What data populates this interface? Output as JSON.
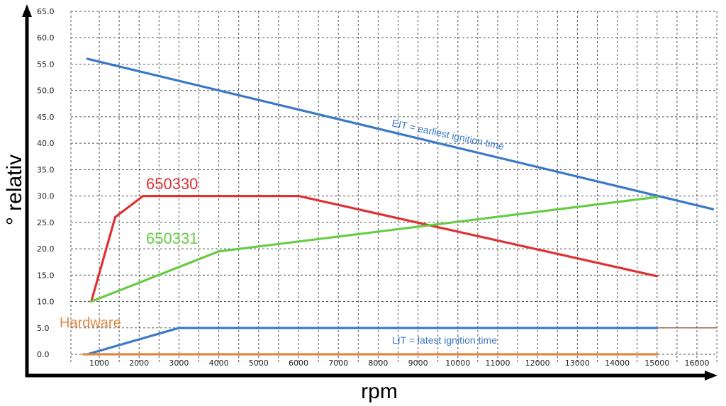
{
  "chart_data": {
    "type": "line",
    "xlabel": "rpm",
    "ylabel": "° relativ",
    "xlim": [
      600,
      16400
    ],
    "ylim": [
      0,
      65
    ],
    "x_ticks": [
      "1000",
      "2000",
      "3000",
      "4000",
      "5000",
      "6000",
      "7000",
      "8000",
      "9000",
      "10000",
      "11000",
      "12000",
      "13000",
      "14000",
      "15000",
      "16000"
    ],
    "y_ticks": [
      "0.0",
      "5.0",
      "10.0",
      "15.0",
      "20.0",
      "25.0",
      "30.0",
      "35.0",
      "40.0",
      "45.0",
      "50.0",
      "55.0",
      "60.0",
      "65.0"
    ],
    "grid": true,
    "series": [
      {
        "name": "EIT = earliest ignition time",
        "color": "#3a78c8",
        "points": [
          [
            700,
            56
          ],
          [
            16400,
            27.5
          ]
        ]
      },
      {
        "name": "650330",
        "color": "#e03030",
        "points": [
          [
            800,
            10
          ],
          [
            1400,
            26
          ],
          [
            2100,
            30
          ],
          [
            6000,
            30
          ],
          [
            15000,
            14.8
          ]
        ]
      },
      {
        "name": "650331",
        "color": "#66cc44",
        "points": [
          [
            800,
            10
          ],
          [
            4000,
            19.5
          ],
          [
            15000,
            29.8
          ]
        ]
      },
      {
        "name": "LIT = latest ignition time",
        "color": "#3a78c8",
        "points": [
          [
            700,
            0
          ],
          [
            3000,
            5
          ],
          [
            15000,
            5
          ]
        ]
      },
      {
        "name": "Hardware",
        "color": "#e08840",
        "points": [
          [
            600,
            0
          ],
          [
            15000,
            0
          ]
        ]
      }
    ],
    "annotations": {
      "eit": "EIT = earliest ignition time",
      "lit": "LIT = latest ignition time",
      "s650330": "650330",
      "s650331": "650331",
      "hardware": "Hardware"
    },
    "reference_line": {
      "y": 5,
      "color": "#8b4a3a"
    }
  }
}
